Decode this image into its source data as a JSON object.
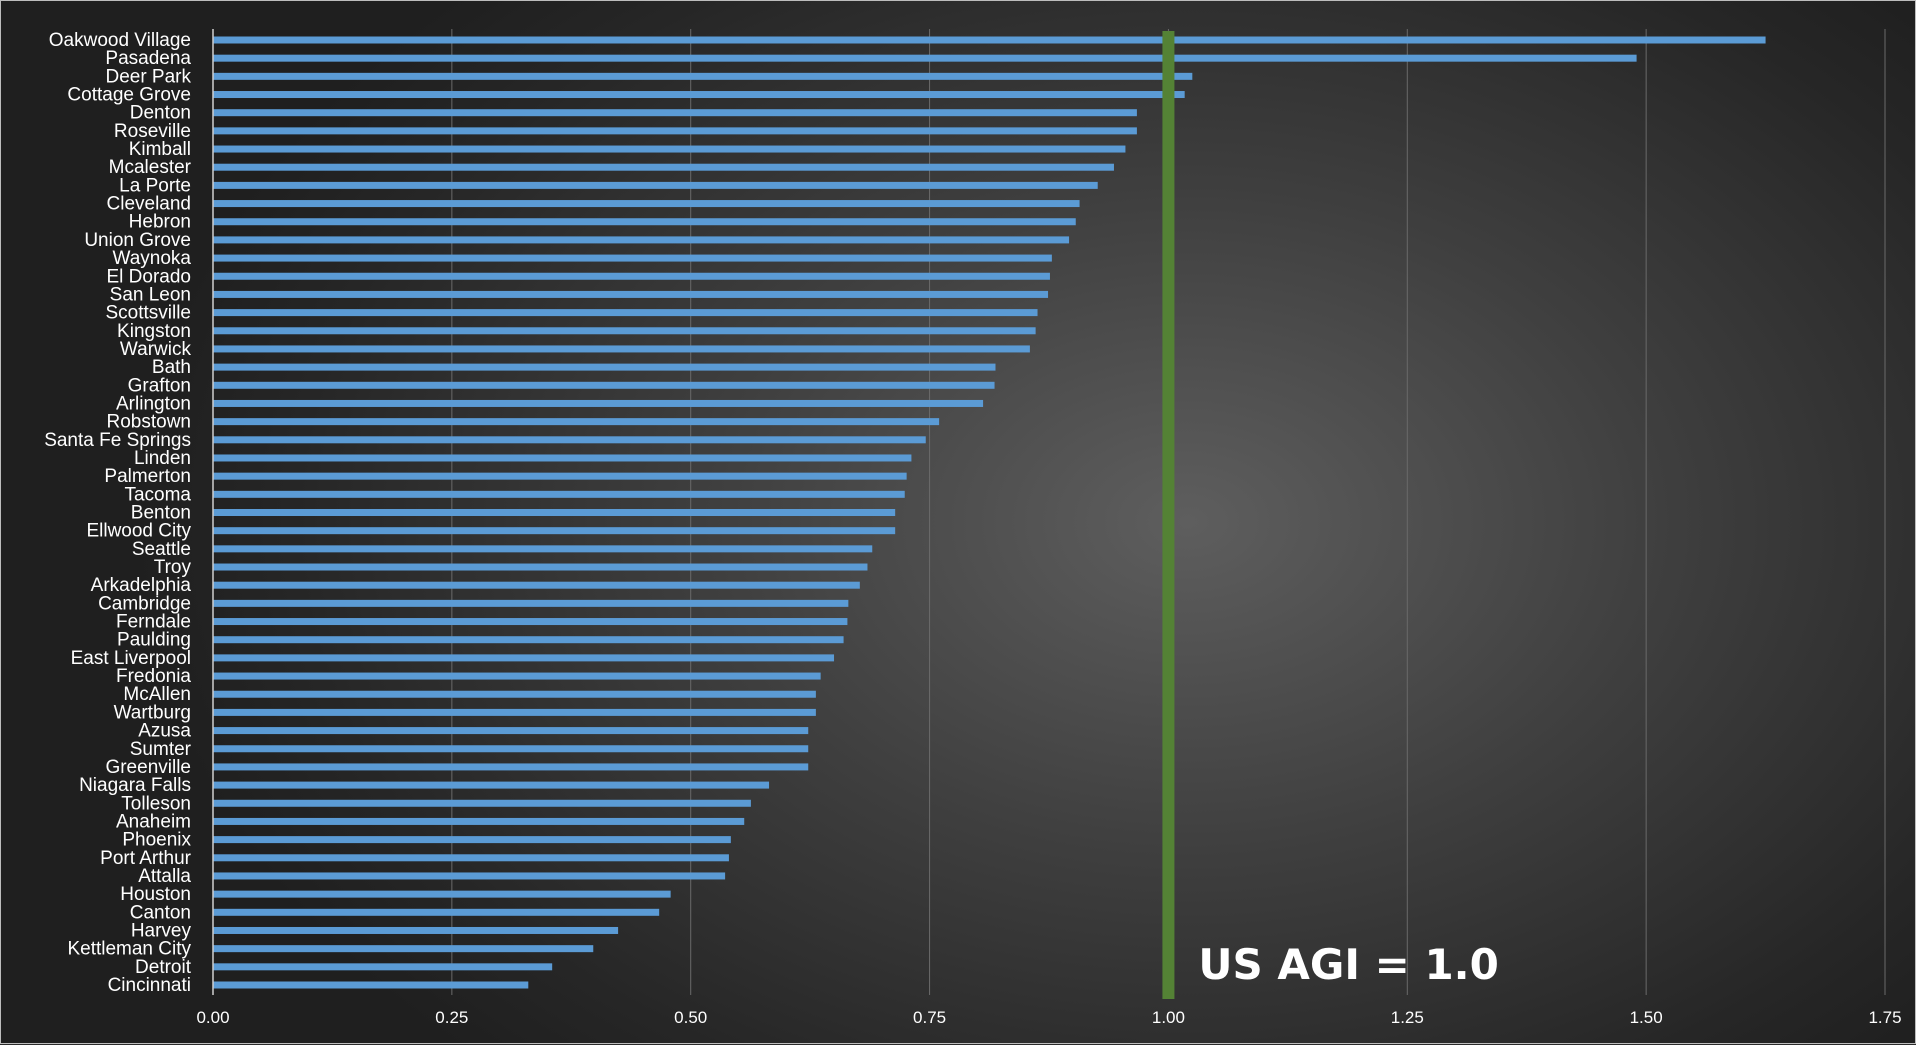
{
  "chart_data": {
    "type": "bar",
    "orientation": "horizontal",
    "xlim": [
      0,
      1.75
    ],
    "x_ticks": [
      "0.00",
      "0.25",
      "0.50",
      "0.75",
      "1.00",
      "1.25",
      "1.50",
      "1.75"
    ],
    "grid": "vertical",
    "bar_color": "#5b9bd5",
    "reference_line": {
      "value": 1.0,
      "color": "#548235",
      "label": "US AGI = 1.0"
    },
    "categories": [
      "Oakwood Village",
      "Pasadena",
      "Deer Park",
      "Cottage Grove",
      "Denton",
      "Roseville",
      "Kimball",
      "Mcalester",
      "La Porte",
      "Cleveland",
      "Hebron",
      "Union Grove",
      "Waynoka",
      "El Dorado",
      "San Leon",
      "Scottsville",
      "Kingston",
      "Warwick",
      "Bath",
      "Grafton",
      "Arlington",
      "Robstown",
      "Santa Fe Springs",
      "Linden",
      "Palmerton",
      "Tacoma",
      "Benton",
      "Ellwood City",
      "Seattle",
      "Troy",
      "Arkadelphia",
      "Cambridge",
      "Ferndale",
      "Paulding",
      "East Liverpool",
      "Fredonia",
      "McAllen",
      "Wartburg",
      "Azusa",
      "Sumter",
      "Greenville",
      "Niagara Falls",
      "Tolleson",
      "Anaheim",
      "Phoenix",
      "Port Arthur",
      "Attalla",
      "Houston",
      "Canton",
      "Harvey",
      "Kettleman City",
      "Detroit",
      "Cincinnati"
    ],
    "values": [
      1.625,
      1.49,
      1.025,
      1.017,
      0.967,
      0.967,
      0.955,
      0.943,
      0.926,
      0.907,
      0.903,
      0.896,
      0.878,
      0.876,
      0.874,
      0.863,
      0.861,
      0.855,
      0.819,
      0.818,
      0.806,
      0.76,
      0.746,
      0.731,
      0.726,
      0.724,
      0.714,
      0.714,
      0.69,
      0.685,
      0.677,
      0.665,
      0.664,
      0.66,
      0.65,
      0.636,
      0.631,
      0.631,
      0.623,
      0.623,
      0.623,
      0.582,
      0.563,
      0.556,
      0.542,
      0.54,
      0.536,
      0.479,
      0.467,
      0.424,
      0.398,
      0.355,
      0.33
    ]
  }
}
